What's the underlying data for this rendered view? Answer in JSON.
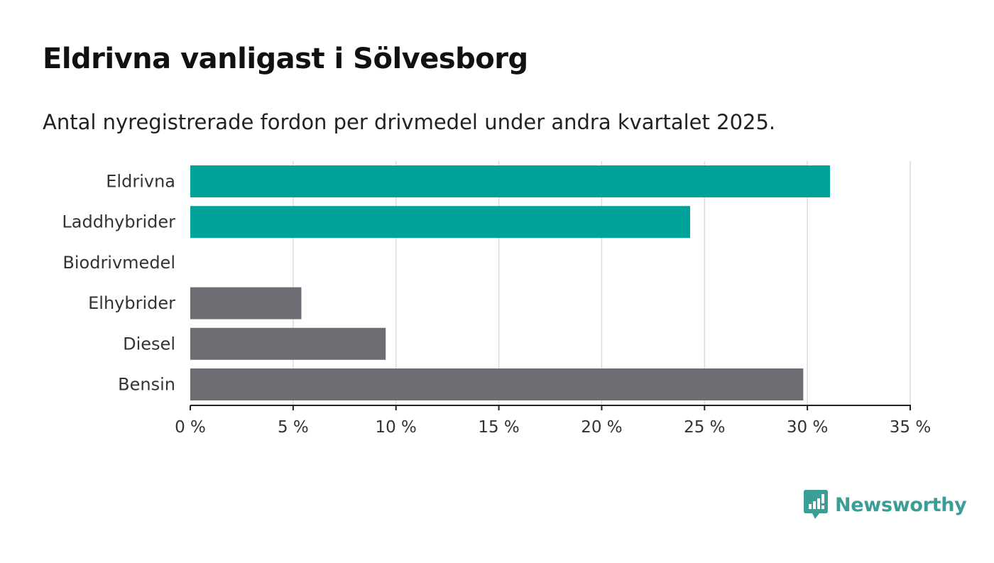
{
  "title": "Eldrivna vanligast i Sölvesborg",
  "subtitle": "Antal nyregistrerade fordon per drivmedel under andra kvartalet 2025.",
  "brand": {
    "name": "Newsworthy",
    "icon": "newsworthy-logo-icon",
    "color": "#3a9e97"
  },
  "chart_data": {
    "type": "bar",
    "orientation": "horizontal",
    "categories": [
      "Eldrivna",
      "Laddhybrider",
      "Biodrivmedel",
      "Elhybrider",
      "Diesel",
      "Bensin"
    ],
    "values": [
      31.1,
      24.3,
      0,
      5.4,
      9.5,
      29.8
    ],
    "colors": [
      "#00a39a",
      "#00a39a",
      "#00a39a",
      "#6e6d74",
      "#6e6d74",
      "#6e6d74"
    ],
    "xlim": [
      0,
      35
    ],
    "xticks": [
      0,
      5,
      10,
      15,
      20,
      25,
      30,
      35
    ],
    "tick_suffix": " %",
    "grid": true,
    "legend": "none"
  }
}
